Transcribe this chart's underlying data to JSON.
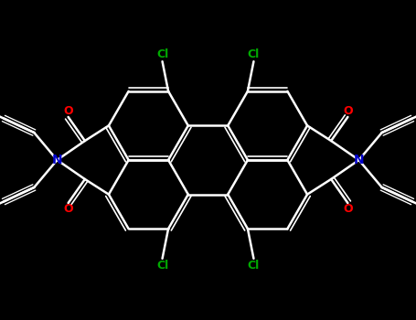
{
  "bg_color": "#000000",
  "bond_color": "#ffffff",
  "cl_color": "#00aa00",
  "o_color": "#ff0000",
  "n_color": "#0000cc",
  "lw": 1.8,
  "lw2": 1.2,
  "S": 1.05,
  "figsize": [
    4.55,
    3.5
  ],
  "dpi": 100,
  "xlim": [
    -5.5,
    5.5
  ],
  "ylim": [
    -4.0,
    4.0
  ]
}
